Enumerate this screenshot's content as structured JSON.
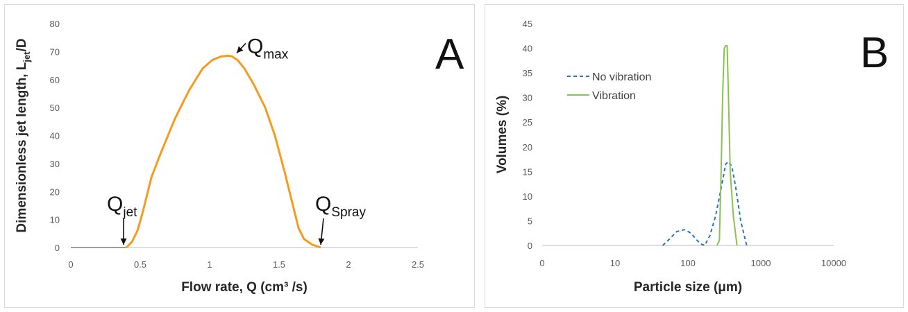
{
  "chart_data": [
    {
      "type": "line",
      "panel_label": "A",
      "ylabel_main": "Dimensionless jet length, L",
      "ylabel_sub": "jet",
      "ylabel_tail": "/D",
      "xlabel": "Flow rate, Q (cm³ /s)",
      "xlim": [
        0,
        2.5
      ],
      "ylim": [
        0,
        80
      ],
      "xticks": [
        0,
        0.5,
        1,
        1.5,
        2,
        2.5
      ],
      "xtick_labels": [
        "0",
        "0.5",
        "1",
        "1.5",
        "2",
        "2.5"
      ],
      "yticks": [
        0,
        10,
        20,
        30,
        40,
        50,
        60,
        70,
        80
      ],
      "ytick_labels": [
        "0",
        "10",
        "20",
        "30",
        "40",
        "50",
        "60",
        "70",
        "80"
      ],
      "grid": false,
      "series_color": "#f39c1f",
      "baseline": [
        [
          0,
          0
        ],
        [
          0.4,
          0
        ]
      ],
      "x": [
        0.4,
        0.44,
        0.48,
        0.52,
        0.58,
        0.65,
        0.75,
        0.85,
        0.95,
        1.02,
        1.08,
        1.13,
        1.16,
        1.2,
        1.25,
        1.32,
        1.4,
        1.47,
        1.54,
        1.6,
        1.64,
        1.68,
        1.74,
        1.8
      ],
      "y": [
        0,
        2,
        6,
        13,
        25,
        34,
        46,
        56,
        64,
        67,
        68.2,
        68.5,
        68.3,
        67,
        64,
        58,
        50,
        40,
        27,
        15,
        7,
        3,
        1,
        0
      ],
      "annotations": [
        {
          "base": "Q",
          "sub": "jet",
          "x": 0.38,
          "y": 0
        },
        {
          "base": "Q",
          "sub": "max",
          "x": 1.18,
          "y": 69
        },
        {
          "base": "Q",
          "sub": "Spray",
          "x": 1.8,
          "y": 0
        }
      ]
    },
    {
      "type": "line",
      "panel_label": "B",
      "xlabel": "Particle size (μm)",
      "ylabel": "Volumes (%)",
      "xscale": "log",
      "xlim": [
        1,
        10000
      ],
      "ylim": [
        0,
        45
      ],
      "xticks": [
        1,
        10,
        100,
        1000,
        10000
      ],
      "xtick_labels": [
        "0",
        "10",
        "100",
        "1000",
        "10000"
      ],
      "yticks": [
        0,
        5,
        10,
        15,
        20,
        25,
        30,
        35,
        40,
        45
      ],
      "ytick_labels": [
        "0",
        "5",
        "10",
        "15",
        "20",
        "25",
        "30",
        "35",
        "40",
        "45"
      ],
      "grid": false,
      "legend": "top-left",
      "series": [
        {
          "name": "No vibration",
          "color": "#2e75b6",
          "dash": "dashed",
          "x": [
            45,
            55,
            70,
            90,
            110,
            130,
            150,
            170,
            200,
            240,
            280,
            330,
            360,
            400,
            450,
            530,
            640
          ],
          "y": [
            0,
            1.2,
            2.8,
            3.2,
            2.5,
            1.2,
            0.3,
            0,
            2,
            6,
            11,
            16.5,
            17,
            16,
            12,
            5,
            0
          ]
        },
        {
          "name": "Vibration",
          "color": "#8cc152",
          "dash": "solid",
          "x": [
            250,
            270,
            285,
            300,
            315,
            330,
            345,
            360,
            380,
            420,
            470
          ],
          "y": [
            0,
            1,
            15,
            31,
            40,
            40.5,
            40.5,
            30,
            15,
            6,
            0
          ]
        }
      ]
    }
  ]
}
